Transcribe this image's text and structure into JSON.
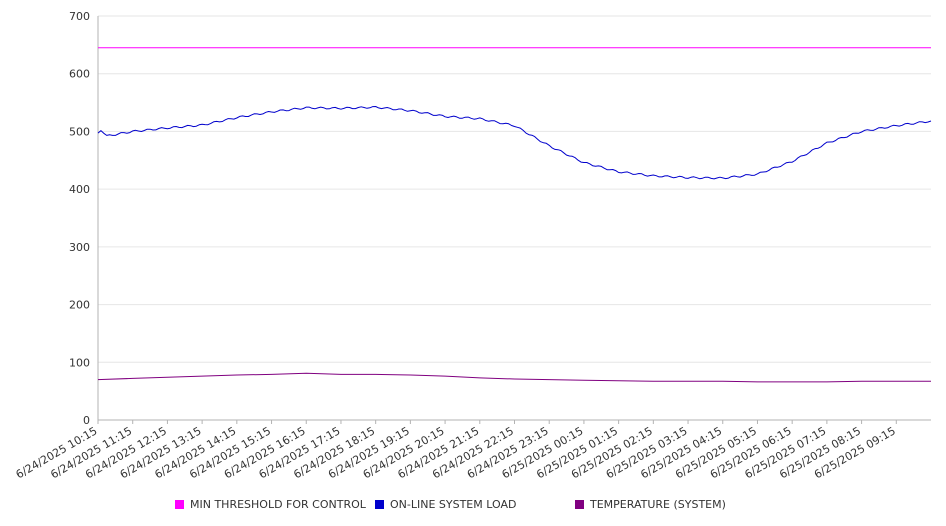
{
  "chart_data": {
    "type": "line",
    "title": "",
    "xlabel": "",
    "ylabel": "",
    "ylim": [
      0,
      700
    ],
    "y_ticks": [
      0,
      100,
      200,
      300,
      400,
      500,
      600,
      700
    ],
    "grid": true,
    "legend_position": "bottom",
    "x_tick_labels": [
      "6/24/2025 10:15",
      "6/24/2025 11:15",
      "6/24/2025 12:15",
      "6/24/2025 13:15",
      "6/24/2025 14:15",
      "6/24/2025 15:15",
      "6/24/2025 16:15",
      "6/24/2025 17:15",
      "6/24/2025 18:15",
      "6/24/2025 19:15",
      "6/24/2025 20:15",
      "6/24/2025 21:15",
      "6/24/2025 22:15",
      "6/24/2025 23:15",
      "6/25/2025 00:15",
      "6/25/2025 01:15",
      "6/25/2025 02:15",
      "6/25/2025 03:15",
      "6/25/2025 04:15",
      "6/25/2025 05:15",
      "6/25/2025 06:15",
      "6/25/2025 07:15",
      "6/25/2025 08:15",
      "6/25/2025 09:15"
    ],
    "x_range": [
      "6/24/2025 10:15",
      "6/25/2025 10:15"
    ],
    "series": [
      {
        "name": "MIN THRESHOLD FOR CONTROL",
        "color": "#ff00ff",
        "x": [
          "6/24/2025 10:15",
          "6/25/2025 10:15"
        ],
        "values": [
          645,
          645
        ]
      },
      {
        "name": "ON-LINE SYSTEM LOAD",
        "color": "#0000cc",
        "x": [
          "6/24/2025 10:15",
          "6/24/2025 10:20",
          "6/24/2025 10:30",
          "6/24/2025 11:15",
          "6/24/2025 12:15",
          "6/24/2025 13:15",
          "6/24/2025 14:15",
          "6/24/2025 15:15",
          "6/24/2025 16:15",
          "6/24/2025 17:15",
          "6/24/2025 18:15",
          "6/24/2025 19:15",
          "6/24/2025 20:15",
          "6/24/2025 21:15",
          "6/24/2025 22:15",
          "6/24/2025 23:15",
          "6/25/2025 00:15",
          "6/25/2025 01:15",
          "6/25/2025 02:15",
          "6/25/2025 03:15",
          "6/25/2025 04:15",
          "6/25/2025 05:15",
          "6/25/2025 06:15",
          "6/25/2025 07:15",
          "6/25/2025 08:15",
          "6/25/2025 09:15",
          "6/25/2025 10:15"
        ],
        "values": [
          497,
          503,
          492,
          500,
          506,
          511,
          524,
          534,
          541,
          540,
          542,
          536,
          526,
          522,
          510,
          475,
          446,
          430,
          423,
          420,
          419,
          426,
          448,
          480,
          500,
          510,
          518
        ]
      },
      {
        "name": "TEMPERATURE (SYSTEM)",
        "color": "#800080",
        "x": [
          "6/24/2025 10:15",
          "6/24/2025 11:15",
          "6/24/2025 12:15",
          "6/24/2025 13:15",
          "6/24/2025 14:15",
          "6/24/2025 15:15",
          "6/24/2025 16:15",
          "6/24/2025 17:15",
          "6/24/2025 18:15",
          "6/24/2025 19:15",
          "6/24/2025 20:15",
          "6/24/2025 21:15",
          "6/24/2025 22:15",
          "6/24/2025 23:15",
          "6/25/2025 00:15",
          "6/25/2025 01:15",
          "6/25/2025 02:15",
          "6/25/2025 03:15",
          "6/25/2025 04:15",
          "6/25/2025 05:15",
          "6/25/2025 06:15",
          "6/25/2025 07:15",
          "6/25/2025 08:15",
          "6/25/2025 09:15",
          "6/25/2025 10:15"
        ],
        "values": [
          70,
          72,
          74,
          76,
          78,
          79,
          81,
          79,
          79,
          78,
          76,
          73,
          71,
          70,
          69,
          68,
          67,
          67,
          67,
          66,
          66,
          66,
          67,
          67,
          67
        ]
      }
    ]
  }
}
